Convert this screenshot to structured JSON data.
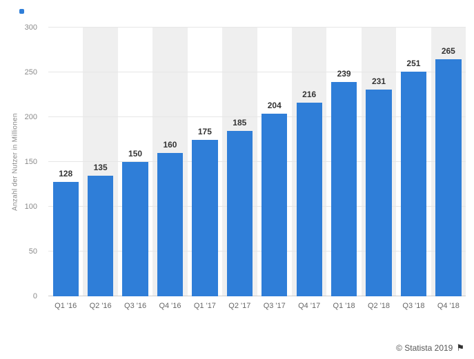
{
  "chart_data": {
    "type": "bar",
    "categories": [
      "Q1 '16",
      "Q2 '16",
      "Q3 '16",
      "Q4 '16",
      "Q1 '17",
      "Q2 '17",
      "Q3 '17",
      "Q4 '17",
      "Q1 '18",
      "Q2 '18",
      "Q3 '18",
      "Q4 '18"
    ],
    "values": [
      128,
      135,
      150,
      160,
      175,
      185,
      204,
      216,
      239,
      231,
      251,
      265
    ],
    "title": "",
    "xlabel": "",
    "ylabel": "Anzahl der Nutzer in Millionen",
    "ylim": [
      0,
      300
    ],
    "yticks": [
      0,
      50,
      100,
      150,
      200,
      250,
      300
    ],
    "bar_color": "#2f7ed8",
    "stripe_color": "#efefef",
    "grid": true,
    "legend": "none"
  },
  "footer": {
    "copyright": "© Statista 2019",
    "flag_icon": "⚑"
  }
}
